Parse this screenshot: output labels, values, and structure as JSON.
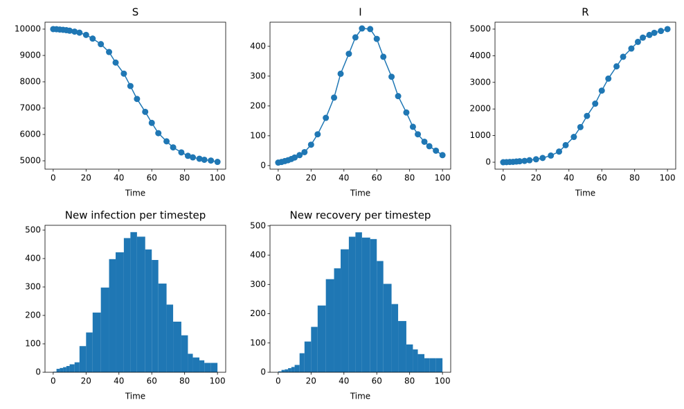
{
  "chart_data": [
    {
      "type": "line",
      "title": "S",
      "xlabel": "Time",
      "color": "#1f77b4",
      "markers": true,
      "x": [
        0,
        2,
        4,
        6,
        8,
        10,
        13,
        16,
        20,
        24,
        29,
        34,
        38,
        43,
        47,
        51,
        56,
        60,
        64,
        69,
        73,
        78,
        82,
        85,
        89,
        92,
        96,
        100
      ],
      "values": [
        10000,
        9995,
        9985,
        9975,
        9960,
        9940,
        9905,
        9865,
        9780,
        9640,
        9430,
        9130,
        8730,
        8310,
        7840,
        7350,
        6860,
        6440,
        6050,
        5740,
        5510,
        5320,
        5190,
        5130,
        5080,
        5040,
        5010,
        4960
      ],
      "xlim": [
        -5,
        105
      ],
      "xticks": [
        0,
        20,
        40,
        60,
        80,
        100
      ],
      "ylim": [
        4684,
        10263
      ],
      "yticks": [
        5000,
        6000,
        7000,
        8000,
        9000,
        10000
      ]
    },
    {
      "type": "line",
      "title": "I",
      "xlabel": "Time",
      "color": "#1f77b4",
      "markers": true,
      "x": [
        0,
        2,
        4,
        6,
        8,
        10,
        13,
        16,
        20,
        24,
        29,
        34,
        38,
        43,
        47,
        51,
        56,
        60,
        64,
        69,
        73,
        78,
        82,
        85,
        89,
        92,
        96,
        100
      ],
      "values": [
        10,
        12,
        15,
        18,
        22,
        27,
        35,
        45,
        70,
        105,
        160,
        228,
        308,
        375,
        430,
        460,
        458,
        425,
        365,
        298,
        233,
        178,
        130,
        105,
        80,
        65,
        50,
        35
      ],
      "xlim": [
        -5,
        105
      ],
      "xticks": [
        0,
        20,
        40,
        60,
        80,
        100
      ],
      "ylim": [
        -12,
        481
      ],
      "yticks": [
        0,
        100,
        200,
        300,
        400
      ]
    },
    {
      "type": "line",
      "title": "R",
      "xlabel": "Time",
      "color": "#1f77b4",
      "markers": true,
      "x": [
        0,
        2,
        4,
        6,
        8,
        10,
        13,
        16,
        20,
        24,
        29,
        34,
        38,
        43,
        47,
        51,
        56,
        60,
        64,
        69,
        73,
        78,
        82,
        85,
        89,
        92,
        96,
        100
      ],
      "values": [
        0,
        5,
        10,
        15,
        25,
        35,
        50,
        75,
        110,
        160,
        250,
        400,
        640,
        950,
        1320,
        1740,
        2200,
        2690,
        3140,
        3600,
        3960,
        4270,
        4520,
        4680,
        4780,
        4860,
        4930,
        5000
      ],
      "xlim": [
        -5,
        105
      ],
      "xticks": [
        0,
        20,
        40,
        60,
        80,
        100
      ],
      "ylim": [
        -260,
        5260
      ],
      "yticks": [
        0,
        1000,
        2000,
        3000,
        4000,
        5000
      ]
    },
    {
      "type": "histogram",
      "title": "New infection per timestep",
      "xlabel": "Time",
      "color": "#1f77b4",
      "bins": [
        0,
        2,
        4,
        6,
        8,
        10,
        13,
        16,
        20,
        24,
        29,
        34,
        38,
        43,
        47,
        51,
        56,
        60,
        64,
        69,
        73,
        78,
        82,
        85,
        89,
        92,
        96,
        100
      ],
      "values": [
        2,
        12,
        15,
        18,
        22,
        28,
        35,
        92,
        140,
        210,
        298,
        398,
        422,
        472,
        493,
        477,
        432,
        395,
        312,
        238,
        178,
        130,
        65,
        52,
        42,
        33,
        33
      ],
      "xlim": [
        -5,
        105
      ],
      "xticks": [
        0,
        20,
        40,
        60,
        80,
        100
      ],
      "ylim": [
        0,
        517
      ],
      "yticks": [
        0,
        100,
        200,
        300,
        400,
        500
      ]
    },
    {
      "type": "histogram",
      "title": "New recovery per timestep",
      "xlabel": "Time",
      "color": "#1f77b4",
      "bins": [
        0,
        2,
        4,
        6,
        8,
        10,
        13,
        16,
        20,
        24,
        29,
        34,
        38,
        43,
        47,
        51,
        56,
        60,
        64,
        69,
        73,
        78,
        82,
        85,
        89,
        92,
        96,
        100
      ],
      "values": [
        3,
        8,
        10,
        14,
        18,
        25,
        65,
        105,
        155,
        228,
        318,
        355,
        420,
        463,
        478,
        460,
        455,
        380,
        302,
        233,
        175,
        95,
        78,
        62,
        48,
        48,
        48
      ],
      "xlim": [
        -5,
        105
      ],
      "xticks": [
        0,
        20,
        40,
        60,
        80,
        100
      ],
      "ylim": [
        0,
        502
      ],
      "yticks": [
        0,
        100,
        200,
        300,
        400,
        500
      ]
    }
  ]
}
